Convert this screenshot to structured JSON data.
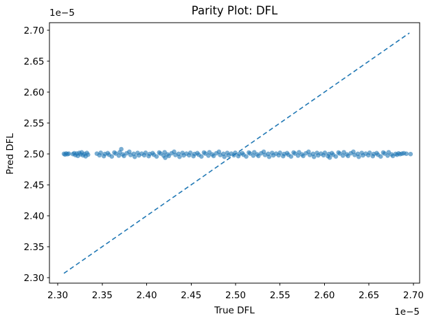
{
  "figure": {
    "background": "#ffffff",
    "spine_color": "#000000",
    "text_color": "#000000"
  },
  "chart_data": {
    "type": "scatter",
    "title": "Parity Plot: DFL",
    "xlabel": "True DFL",
    "ylabel": "Pred DFL",
    "x_offset_text": "1e−5",
    "y_offset_text": "1e−5",
    "axis_scale_note": "all axis values are multiplied by 1e-5",
    "xlim": [
      2.2907,
      2.707
    ],
    "ylim": [
      2.2911,
      2.7122
    ],
    "grid": false,
    "legend": "none",
    "xticks": {
      "values": [
        2.3,
        2.35,
        2.4,
        2.45,
        2.5,
        2.55,
        2.6,
        2.65,
        2.7
      ],
      "labels": [
        "2.30",
        "2.35",
        "2.40",
        "2.45",
        "2.50",
        "2.55",
        "2.60",
        "2.65",
        "2.70"
      ]
    },
    "yticks": {
      "values": [
        2.3,
        2.35,
        2.4,
        2.45,
        2.5,
        2.55,
        2.6,
        2.65,
        2.7
      ],
      "labels": [
        "2.30",
        "2.35",
        "2.40",
        "2.45",
        "2.50",
        "2.55",
        "2.60",
        "2.65",
        "2.70"
      ]
    },
    "series": [
      {
        "name": "identity-line",
        "type": "line",
        "style": "dashed",
        "color": "#1f77b4",
        "width": 1.6,
        "dash": "6.5 4.2",
        "points": [
          [
            2.307,
            2.307
          ],
          [
            2.6955,
            2.6955
          ]
        ]
      },
      {
        "name": "predictions",
        "type": "scatter",
        "color": "#1f77b4",
        "alpha": 0.6,
        "marker_radius": 3.3,
        "points": [
          [
            2.307,
            2.5002
          ],
          [
            2.3082,
            2.499
          ],
          [
            2.3095,
            2.5008
          ],
          [
            2.311,
            2.4996
          ],
          [
            2.3124,
            2.5004
          ],
          [
            2.317,
            2.4998
          ],
          [
            2.3186,
            2.5012
          ],
          [
            2.3199,
            2.4981
          ],
          [
            2.3214,
            2.5006
          ],
          [
            2.3227,
            2.4969
          ],
          [
            2.3243,
            2.5018
          ],
          [
            2.3256,
            2.4993
          ],
          [
            2.327,
            2.5025
          ],
          [
            2.3285,
            2.4977
          ],
          [
            2.3299,
            2.5001
          ],
          [
            2.3314,
            2.4962
          ],
          [
            2.3328,
            2.5015
          ],
          [
            2.3341,
            2.4988
          ],
          [
            2.344,
            2.5004
          ],
          [
            2.3469,
            2.4979
          ],
          [
            2.3484,
            2.5019
          ],
          [
            2.3519,
            2.4964
          ],
          [
            2.353,
            2.4999
          ],
          [
            2.3563,
            2.5013
          ],
          [
            2.3577,
            2.4987
          ],
          [
            2.3608,
            2.4959
          ],
          [
            2.3637,
            2.5023
          ],
          [
            2.3652,
            2.5007
          ],
          [
            2.3687,
            2.4973
          ],
          [
            2.3698,
            2.5028
          ],
          [
            2.3731,
            2.4992
          ],
          [
            2.3745,
            2.4968
          ],
          [
            2.3776,
            2.5011
          ],
          [
            2.3805,
            2.5035
          ],
          [
            2.382,
            2.4983
          ],
          [
            2.3855,
            2.5002
          ],
          [
            2.3866,
            2.4953
          ],
          [
            2.3899,
            2.5016
          ],
          [
            2.3913,
            2.4977
          ],
          [
            2.3944,
            2.5004
          ],
          [
            2.3973,
            2.4979
          ],
          [
            2.3988,
            2.5019
          ],
          [
            2.4023,
            2.4964
          ],
          [
            2.4034,
            2.4999
          ],
          [
            2.4067,
            2.5013
          ],
          [
            2.4081,
            2.4987
          ],
          [
            2.4112,
            2.4959
          ],
          [
            2.4141,
            2.5023
          ],
          [
            2.4156,
            2.5007
          ],
          [
            2.4191,
            2.4973
          ],
          [
            2.4202,
            2.5028
          ],
          [
            2.4235,
            2.4992
          ],
          [
            2.4249,
            2.4968
          ],
          [
            2.428,
            2.5011
          ],
          [
            2.4309,
            2.5035
          ],
          [
            2.4324,
            2.4983
          ],
          [
            2.4359,
            2.5002
          ],
          [
            2.437,
            2.4953
          ],
          [
            2.4403,
            2.5016
          ],
          [
            2.4417,
            2.4977
          ],
          [
            2.4448,
            2.5004
          ],
          [
            2.4477,
            2.4979
          ],
          [
            2.4492,
            2.5019
          ],
          [
            2.4527,
            2.4964
          ],
          [
            2.4538,
            2.4999
          ],
          [
            2.4571,
            2.5013
          ],
          [
            2.4585,
            2.4987
          ],
          [
            2.4616,
            2.4959
          ],
          [
            2.4645,
            2.5023
          ],
          [
            2.466,
            2.5007
          ],
          [
            2.4695,
            2.4973
          ],
          [
            2.4706,
            2.5028
          ],
          [
            2.4739,
            2.4992
          ],
          [
            2.4753,
            2.4968
          ],
          [
            2.4784,
            2.5011
          ],
          [
            2.4813,
            2.5035
          ],
          [
            2.4828,
            2.4983
          ],
          [
            2.4863,
            2.5002
          ],
          [
            2.4874,
            2.4953
          ],
          [
            2.4907,
            2.5016
          ],
          [
            2.4921,
            2.4977
          ],
          [
            2.4952,
            2.5004
          ],
          [
            2.4981,
            2.4979
          ],
          [
            2.4996,
            2.5019
          ],
          [
            2.5031,
            2.4964
          ],
          [
            2.5042,
            2.4999
          ],
          [
            2.5075,
            2.5013
          ],
          [
            2.5089,
            2.4987
          ],
          [
            2.512,
            2.4959
          ],
          [
            2.5149,
            2.5023
          ],
          [
            2.5164,
            2.5007
          ],
          [
            2.5199,
            2.4973
          ],
          [
            2.521,
            2.5028
          ],
          [
            2.5243,
            2.4992
          ],
          [
            2.5257,
            2.4968
          ],
          [
            2.5288,
            2.5011
          ],
          [
            2.5317,
            2.5035
          ],
          [
            2.5332,
            2.4983
          ],
          [
            2.5367,
            2.5002
          ],
          [
            2.5378,
            2.4953
          ],
          [
            2.5411,
            2.5016
          ],
          [
            2.5425,
            2.4977
          ],
          [
            2.5456,
            2.5004
          ],
          [
            2.5485,
            2.4979
          ],
          [
            2.55,
            2.5019
          ],
          [
            2.5535,
            2.4964
          ],
          [
            2.5546,
            2.4999
          ],
          [
            2.5579,
            2.5013
          ],
          [
            2.5593,
            2.4987
          ],
          [
            2.5624,
            2.4959
          ],
          [
            2.5653,
            2.5023
          ],
          [
            2.5668,
            2.5007
          ],
          [
            2.5703,
            2.4973
          ],
          [
            2.5714,
            2.5028
          ],
          [
            2.5747,
            2.4992
          ],
          [
            2.5761,
            2.4968
          ],
          [
            2.5792,
            2.5011
          ],
          [
            2.5821,
            2.5035
          ],
          [
            2.5836,
            2.4983
          ],
          [
            2.5871,
            2.5002
          ],
          [
            2.5882,
            2.4953
          ],
          [
            2.5915,
            2.5016
          ],
          [
            2.5929,
            2.4977
          ],
          [
            2.596,
            2.5004
          ],
          [
            2.5989,
            2.4979
          ],
          [
            2.6004,
            2.5019
          ],
          [
            2.6039,
            2.4964
          ],
          [
            2.605,
            2.4999
          ],
          [
            2.6083,
            2.5013
          ],
          [
            2.6097,
            2.4987
          ],
          [
            2.6128,
            2.4959
          ],
          [
            2.6157,
            2.5023
          ],
          [
            2.6172,
            2.5007
          ],
          [
            2.6207,
            2.4973
          ],
          [
            2.6218,
            2.5028
          ],
          [
            2.6251,
            2.4992
          ],
          [
            2.6265,
            2.4968
          ],
          [
            2.6296,
            2.5011
          ],
          [
            2.6325,
            2.5035
          ],
          [
            2.634,
            2.4983
          ],
          [
            2.6375,
            2.5002
          ],
          [
            2.6386,
            2.4953
          ],
          [
            2.6419,
            2.5016
          ],
          [
            2.6433,
            2.4977
          ],
          [
            2.6464,
            2.5004
          ],
          [
            2.6493,
            2.4979
          ],
          [
            2.6508,
            2.5019
          ],
          [
            2.6543,
            2.4964
          ],
          [
            2.6554,
            2.4999
          ],
          [
            2.6587,
            2.5013
          ],
          [
            2.6601,
            2.4987
          ],
          [
            2.6632,
            2.4959
          ],
          [
            2.6661,
            2.5023
          ],
          [
            2.6676,
            2.5007
          ],
          [
            2.6711,
            2.4973
          ],
          [
            2.6722,
            2.5028
          ],
          [
            2.6755,
            2.4992
          ],
          [
            2.6769,
            2.4968
          ],
          [
            2.3715,
            2.5078
          ],
          [
            2.4209,
            2.4938
          ],
          [
            2.6059,
            2.4941
          ],
          [
            2.68,
            2.5001
          ],
          [
            2.6816,
            2.4987
          ],
          [
            2.6833,
            2.5009
          ],
          [
            2.6851,
            2.4996
          ],
          [
            2.6872,
            2.5004
          ],
          [
            2.6892,
            2.5012
          ],
          [
            2.6921,
            2.5003
          ],
          [
            2.6968,
            2.4998
          ]
        ]
      }
    ]
  }
}
